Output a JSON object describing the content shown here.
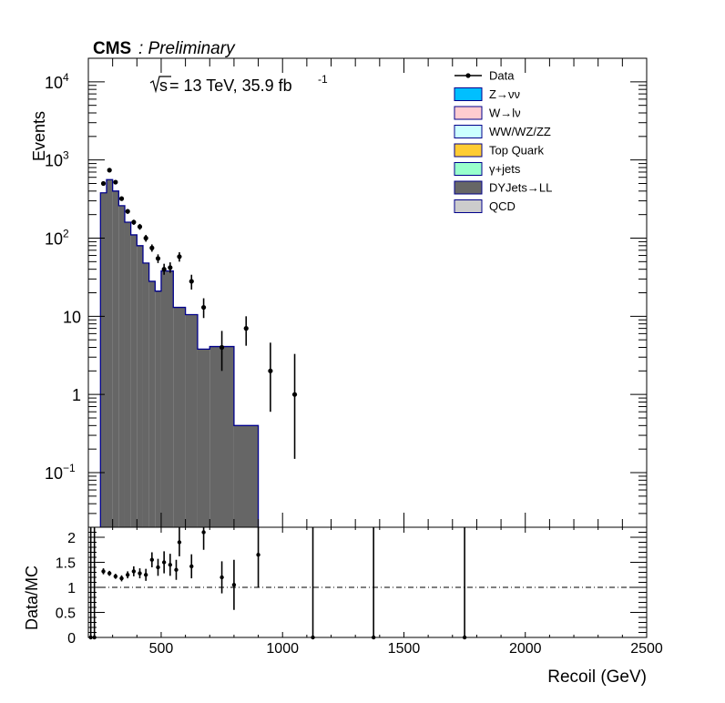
{
  "header": {
    "experiment": "CMS",
    "status": ": Preliminary",
    "lumi_sqrt": "s",
    "lumi_text": " = 13 TeV, 35.9 fb",
    "lumi_exp": "-1"
  },
  "legend": [
    {
      "label": "Data",
      "style": "marker",
      "color": "#000000"
    },
    {
      "label": "Z→νν",
      "style": "box",
      "color": "#00bfff"
    },
    {
      "label": "W→lν",
      "style": "box",
      "color": "#ffccd0"
    },
    {
      "label": "WW/WZ/ZZ",
      "style": "box",
      "color": "#ccffff"
    },
    {
      "label": "Top Quark",
      "style": "box",
      "color": "#ffcc33"
    },
    {
      "label": "γ+jets",
      "style": "box",
      "color": "#99ffcc"
    },
    {
      "label": "DYJets→LL",
      "style": "box",
      "color": "#666666"
    },
    {
      "label": "QCD",
      "style": "box",
      "color": "#cccccc"
    }
  ],
  "chart_data": [
    {
      "type": "bar",
      "panel": "main",
      "ylabel": "Events",
      "yscale": "log",
      "xlim": [
        200,
        2500
      ],
      "ylim": [
        0.02,
        20000
      ],
      "y_ticks": [
        {
          "v": 0.1,
          "base": "10",
          "exp": "−1"
        },
        {
          "v": 1,
          "base": "1",
          "exp": ""
        },
        {
          "v": 10,
          "base": "10",
          "exp": ""
        },
        {
          "v": 100,
          "base": "10",
          "exp": "2"
        },
        {
          "v": 1000,
          "base": "10",
          "exp": "3"
        },
        {
          "v": 10000,
          "base": "10",
          "exp": "4"
        }
      ],
      "mc_stack_series": "DYJets→LL",
      "mc_fill": "#666666",
      "mc_edge": "#00008b",
      "mc_bins": [
        {
          "lo": 250,
          "hi": 275,
          "v": 380
        },
        {
          "lo": 275,
          "hi": 300,
          "v": 560
        },
        {
          "lo": 300,
          "hi": 325,
          "v": 400
        },
        {
          "lo": 325,
          "hi": 350,
          "v": 260
        },
        {
          "lo": 350,
          "hi": 375,
          "v": 160
        },
        {
          "lo": 375,
          "hi": 400,
          "v": 110
        },
        {
          "lo": 400,
          "hi": 425,
          "v": 80
        },
        {
          "lo": 425,
          "hi": 450,
          "v": 48
        },
        {
          "lo": 450,
          "hi": 475,
          "v": 28
        },
        {
          "lo": 475,
          "hi": 500,
          "v": 21
        },
        {
          "lo": 500,
          "hi": 550,
          "v": 38
        },
        {
          "lo": 550,
          "hi": 600,
          "v": 13
        },
        {
          "lo": 600,
          "hi": 650,
          "v": 10.5
        },
        {
          "lo": 650,
          "hi": 700,
          "v": 3.8
        },
        {
          "lo": 700,
          "hi": 800,
          "v": 4.1
        },
        {
          "lo": 800,
          "hi": 900,
          "v": 0.4
        }
      ],
      "data_points": [
        {
          "x": 262,
          "y": 500,
          "lo": 470,
          "hi": 530
        },
        {
          "x": 287,
          "y": 740,
          "lo": 700,
          "hi": 780
        },
        {
          "x": 312,
          "y": 520,
          "lo": 490,
          "hi": 550
        },
        {
          "x": 337,
          "y": 320,
          "lo": 300,
          "hi": 340
        },
        {
          "x": 362,
          "y": 220,
          "lo": 205,
          "hi": 235
        },
        {
          "x": 387,
          "y": 160,
          "lo": 148,
          "hi": 172
        },
        {
          "x": 412,
          "y": 140,
          "lo": 128,
          "hi": 152
        },
        {
          "x": 437,
          "y": 100,
          "lo": 90,
          "hi": 110
        },
        {
          "x": 462,
          "y": 75,
          "lo": 67,
          "hi": 83
        },
        {
          "x": 487,
          "y": 55,
          "lo": 48,
          "hi": 62
        },
        {
          "x": 512,
          "y": 40,
          "lo": 34,
          "hi": 47
        },
        {
          "x": 537,
          "y": 42,
          "lo": 36,
          "hi": 49
        },
        {
          "x": 575,
          "y": 58,
          "lo": 50,
          "hi": 66
        },
        {
          "x": 625,
          "y": 28,
          "lo": 22,
          "hi": 34
        },
        {
          "x": 675,
          "y": 13,
          "lo": 9.5,
          "hi": 17
        },
        {
          "x": 750,
          "y": 4,
          "lo": 2,
          "hi": 6.5
        },
        {
          "x": 850,
          "y": 7,
          "lo": 4.2,
          "hi": 10
        },
        {
          "x": 950,
          "y": 2,
          "lo": 0.6,
          "hi": 4.6
        },
        {
          "x": 1050,
          "y": 1,
          "lo": 0.15,
          "hi": 3.3
        }
      ]
    },
    {
      "type": "scatter",
      "panel": "ratio",
      "ylabel": "Data/MC",
      "xlabel": "Recoil (GeV)",
      "xlim": [
        200,
        2500
      ],
      "ylim": [
        0,
        2.2
      ],
      "x_ticks": [
        500,
        1000,
        1500,
        2000,
        2500
      ],
      "y_ticks": [
        0,
        0.5,
        1,
        1.5,
        2
      ],
      "y_tick_labels": [
        "0",
        "0.5",
        "1",
        "1.5",
        "2"
      ],
      "reference_line": 1,
      "points": [
        {
          "x": 210,
          "y": 0,
          "lo": 0,
          "hi": 2.2
        },
        {
          "x": 225,
          "y": 0,
          "lo": 0,
          "hi": 2.2
        },
        {
          "x": 262,
          "y": 1.32,
          "lo": 1.26,
          "hi": 1.38
        },
        {
          "x": 287,
          "y": 1.28,
          "lo": 1.23,
          "hi": 1.33
        },
        {
          "x": 312,
          "y": 1.22,
          "lo": 1.17,
          "hi": 1.27
        },
        {
          "x": 337,
          "y": 1.18,
          "lo": 1.12,
          "hi": 1.24
        },
        {
          "x": 362,
          "y": 1.25,
          "lo": 1.18,
          "hi": 1.32
        },
        {
          "x": 387,
          "y": 1.32,
          "lo": 1.22,
          "hi": 1.42
        },
        {
          "x": 412,
          "y": 1.28,
          "lo": 1.18,
          "hi": 1.38
        },
        {
          "x": 437,
          "y": 1.25,
          "lo": 1.13,
          "hi": 1.37
        },
        {
          "x": 462,
          "y": 1.55,
          "lo": 1.4,
          "hi": 1.7
        },
        {
          "x": 487,
          "y": 1.4,
          "lo": 1.23,
          "hi": 1.57
        },
        {
          "x": 512,
          "y": 1.5,
          "lo": 1.28,
          "hi": 1.72
        },
        {
          "x": 537,
          "y": 1.45,
          "lo": 1.23,
          "hi": 1.67
        },
        {
          "x": 562,
          "y": 1.35,
          "lo": 1.15,
          "hi": 1.55
        },
        {
          "x": 575,
          "y": 1.9,
          "lo": 1.62,
          "hi": 2.2
        },
        {
          "x": 625,
          "y": 1.42,
          "lo": 1.18,
          "hi": 1.66
        },
        {
          "x": 675,
          "y": 2.1,
          "lo": 1.75,
          "hi": 2.2
        },
        {
          "x": 750,
          "y": 1.2,
          "lo": 0.88,
          "hi": 1.52
        },
        {
          "x": 800,
          "y": 1.05,
          "lo": 0.55,
          "hi": 1.55
        },
        {
          "x": 900,
          "y": 1.65,
          "lo": 1.0,
          "hi": 2.2
        },
        {
          "x": 1125,
          "y": 0,
          "lo": 0,
          "hi": 2.2
        },
        {
          "x": 1375,
          "y": 0,
          "lo": 0,
          "hi": 2.2
        },
        {
          "x": 1750,
          "y": 0,
          "lo": 0,
          "hi": 2.2
        }
      ]
    }
  ]
}
